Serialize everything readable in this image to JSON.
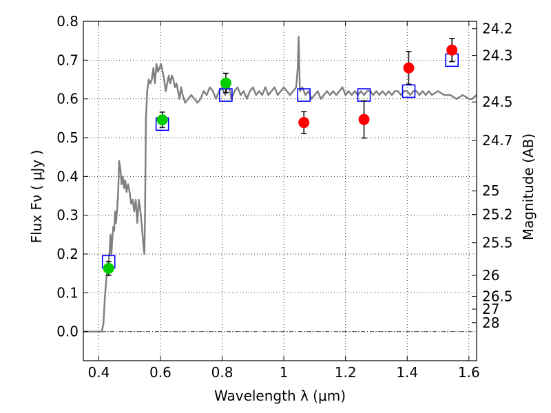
{
  "chart_data": {
    "type": "scatter",
    "xlabel": "Wavelength  λ (μm)",
    "ylabel": "Flux  Fν  ( μJy )",
    "ylabel_right": "Magnitude (AB)",
    "xlim": [
      0.35,
      1.625
    ],
    "ylim": [
      -0.075,
      0.8
    ],
    "grid": true,
    "x_ticks": [
      0.4,
      0.6,
      0.8,
      1.0,
      1.2,
      1.4,
      1.6
    ],
    "x_tick_labels": [
      "0.4",
      "0.6",
      "0.8",
      "1",
      "1.2",
      "1.4",
      "1.6"
    ],
    "y_ticks": [
      0.0,
      0.1,
      0.2,
      0.3,
      0.4,
      0.5,
      0.6,
      0.7,
      0.8
    ],
    "y_tick_labels": [
      "0.0",
      "0.1",
      "0.2",
      "0.3",
      "0.4",
      "0.5",
      "0.6",
      "0.7",
      "0.8"
    ],
    "mag_ticks": [
      {
        "label": "24.2",
        "flux": 0.781
      },
      {
        "label": "24.3",
        "flux": 0.712
      },
      {
        "label": "24.5",
        "flux": 0.592
      },
      {
        "label": "24.7",
        "flux": 0.493
      },
      {
        "label": "25",
        "flux": 0.363
      },
      {
        "label": "25.2",
        "flux": 0.302
      },
      {
        "label": "25.5",
        "flux": 0.229
      },
      {
        "label": "26",
        "flux": 0.145
      },
      {
        "label": "26.5",
        "flux": 0.091
      },
      {
        "label": "27",
        "flux": 0.058
      },
      {
        "label": "28",
        "flux": 0.023
      }
    ],
    "series": [
      {
        "kind": "line",
        "color": "#808080",
        "points": [
          [
            0.35,
            0.0
          ],
          [
            0.41,
            0.0
          ],
          [
            0.415,
            0.02
          ],
          [
            0.42,
            0.09
          ],
          [
            0.425,
            0.14
          ],
          [
            0.43,
            0.17
          ],
          [
            0.435,
            0.2
          ],
          [
            0.438,
            0.25
          ],
          [
            0.441,
            0.2
          ],
          [
            0.444,
            0.24
          ],
          [
            0.447,
            0.27
          ],
          [
            0.45,
            0.26
          ],
          [
            0.453,
            0.31
          ],
          [
            0.456,
            0.28
          ],
          [
            0.46,
            0.32
          ],
          [
            0.463,
            0.36
          ],
          [
            0.466,
            0.44
          ],
          [
            0.47,
            0.42
          ],
          [
            0.474,
            0.38
          ],
          [
            0.478,
            0.4
          ],
          [
            0.482,
            0.37
          ],
          [
            0.486,
            0.39
          ],
          [
            0.49,
            0.36
          ],
          [
            0.495,
            0.38
          ],
          [
            0.5,
            0.36
          ],
          [
            0.505,
            0.33
          ],
          [
            0.51,
            0.34
          ],
          [
            0.515,
            0.31
          ],
          [
            0.52,
            0.34
          ],
          [
            0.525,
            0.28
          ],
          [
            0.53,
            0.34
          ],
          [
            0.535,
            0.31
          ],
          [
            0.54,
            0.27
          ],
          [
            0.545,
            0.22
          ],
          [
            0.548,
            0.2
          ],
          [
            0.55,
            0.3
          ],
          [
            0.553,
            0.55
          ],
          [
            0.557,
            0.62
          ],
          [
            0.562,
            0.65
          ],
          [
            0.567,
            0.64
          ],
          [
            0.572,
            0.65
          ],
          [
            0.577,
            0.68
          ],
          [
            0.582,
            0.64
          ],
          [
            0.587,
            0.69
          ],
          [
            0.592,
            0.67
          ],
          [
            0.597,
            0.68
          ],
          [
            0.602,
            0.69
          ],
          [
            0.607,
            0.67
          ],
          [
            0.612,
            0.65
          ],
          [
            0.617,
            0.62
          ],
          [
            0.622,
            0.64
          ],
          [
            0.627,
            0.66
          ],
          [
            0.632,
            0.64
          ],
          [
            0.637,
            0.66
          ],
          [
            0.642,
            0.65
          ],
          [
            0.647,
            0.63
          ],
          [
            0.652,
            0.64
          ],
          [
            0.657,
            0.62
          ],
          [
            0.662,
            0.6
          ],
          [
            0.667,
            0.63
          ],
          [
            0.672,
            0.61
          ],
          [
            0.68,
            0.59
          ],
          [
            0.69,
            0.6
          ],
          [
            0.7,
            0.61
          ],
          [
            0.71,
            0.6
          ],
          [
            0.72,
            0.59
          ],
          [
            0.73,
            0.6
          ],
          [
            0.74,
            0.62
          ],
          [
            0.75,
            0.61
          ],
          [
            0.76,
            0.63
          ],
          [
            0.77,
            0.62
          ],
          [
            0.78,
            0.6
          ],
          [
            0.79,
            0.62
          ],
          [
            0.8,
            0.63
          ],
          [
            0.81,
            0.61
          ],
          [
            0.82,
            0.64
          ],
          [
            0.83,
            0.6
          ],
          [
            0.84,
            0.62
          ],
          [
            0.85,
            0.63
          ],
          [
            0.86,
            0.61
          ],
          [
            0.87,
            0.62
          ],
          [
            0.88,
            0.6
          ],
          [
            0.89,
            0.62
          ],
          [
            0.9,
            0.63
          ],
          [
            0.91,
            0.61
          ],
          [
            0.92,
            0.62
          ],
          [
            0.93,
            0.61
          ],
          [
            0.94,
            0.63
          ],
          [
            0.95,
            0.61
          ],
          [
            0.96,
            0.62
          ],
          [
            0.97,
            0.63
          ],
          [
            0.98,
            0.61
          ],
          [
            0.99,
            0.62
          ],
          [
            1.0,
            0.63
          ],
          [
            1.01,
            0.62
          ],
          [
            1.02,
            0.61
          ],
          [
            1.03,
            0.62
          ],
          [
            1.04,
            0.63
          ],
          [
            1.045,
            0.68
          ],
          [
            1.048,
            0.76
          ],
          [
            1.052,
            0.62
          ],
          [
            1.06,
            0.63
          ],
          [
            1.07,
            0.61
          ],
          [
            1.08,
            0.62
          ],
          [
            1.09,
            0.6
          ],
          [
            1.1,
            0.61
          ],
          [
            1.11,
            0.62
          ],
          [
            1.12,
            0.6
          ],
          [
            1.13,
            0.61
          ],
          [
            1.14,
            0.62
          ],
          [
            1.15,
            0.61
          ],
          [
            1.16,
            0.62
          ],
          [
            1.17,
            0.61
          ],
          [
            1.18,
            0.62
          ],
          [
            1.19,
            0.63
          ],
          [
            1.2,
            0.61
          ],
          [
            1.21,
            0.62
          ],
          [
            1.22,
            0.61
          ],
          [
            1.23,
            0.62
          ],
          [
            1.24,
            0.61
          ],
          [
            1.25,
            0.62
          ],
          [
            1.26,
            0.61
          ],
          [
            1.27,
            0.62
          ],
          [
            1.28,
            0.62
          ],
          [
            1.29,
            0.61
          ],
          [
            1.3,
            0.62
          ],
          [
            1.31,
            0.61
          ],
          [
            1.32,
            0.62
          ],
          [
            1.33,
            0.61
          ],
          [
            1.34,
            0.62
          ],
          [
            1.35,
            0.61
          ],
          [
            1.36,
            0.62
          ],
          [
            1.37,
            0.62
          ],
          [
            1.38,
            0.61
          ],
          [
            1.39,
            0.62
          ],
          [
            1.4,
            0.62
          ],
          [
            1.41,
            0.61
          ],
          [
            1.42,
            0.62
          ],
          [
            1.43,
            0.62
          ],
          [
            1.44,
            0.61
          ],
          [
            1.45,
            0.62
          ],
          [
            1.46,
            0.61
          ],
          [
            1.47,
            0.62
          ],
          [
            1.48,
            0.61
          ],
          [
            1.5,
            0.62
          ],
          [
            1.52,
            0.61
          ],
          [
            1.54,
            0.61
          ],
          [
            1.56,
            0.6
          ],
          [
            1.58,
            0.61
          ],
          [
            1.6,
            0.6
          ],
          [
            1.61,
            0.6
          ],
          [
            1.625,
            0.61
          ]
        ]
      },
      {
        "kind": "squares",
        "color": "#0000ff",
        "points": [
          [
            0.432,
            0.18
          ],
          [
            0.606,
            0.535
          ],
          [
            0.812,
            0.61
          ],
          [
            1.065,
            0.61
          ],
          [
            1.26,
            0.61
          ],
          [
            1.405,
            0.62
          ],
          [
            1.545,
            0.7
          ]
        ]
      },
      {
        "kind": "points",
        "color": "#00cc00",
        "points": [
          {
            "x": 0.432,
            "y": 0.163,
            "err": 0.018
          },
          {
            "x": 0.606,
            "y": 0.546,
            "err": 0.02
          },
          {
            "x": 0.812,
            "y": 0.641,
            "err": 0.025
          }
        ]
      },
      {
        "kind": "points",
        "color": "#ff0000",
        "points": [
          {
            "x": 1.065,
            "y": 0.539,
            "err": 0.028
          },
          {
            "x": 1.26,
            "y": 0.547,
            "err": 0.048
          },
          {
            "x": 1.405,
            "y": 0.68,
            "err": 0.042
          },
          {
            "x": 1.545,
            "y": 0.726,
            "err": 0.03
          }
        ]
      }
    ]
  }
}
